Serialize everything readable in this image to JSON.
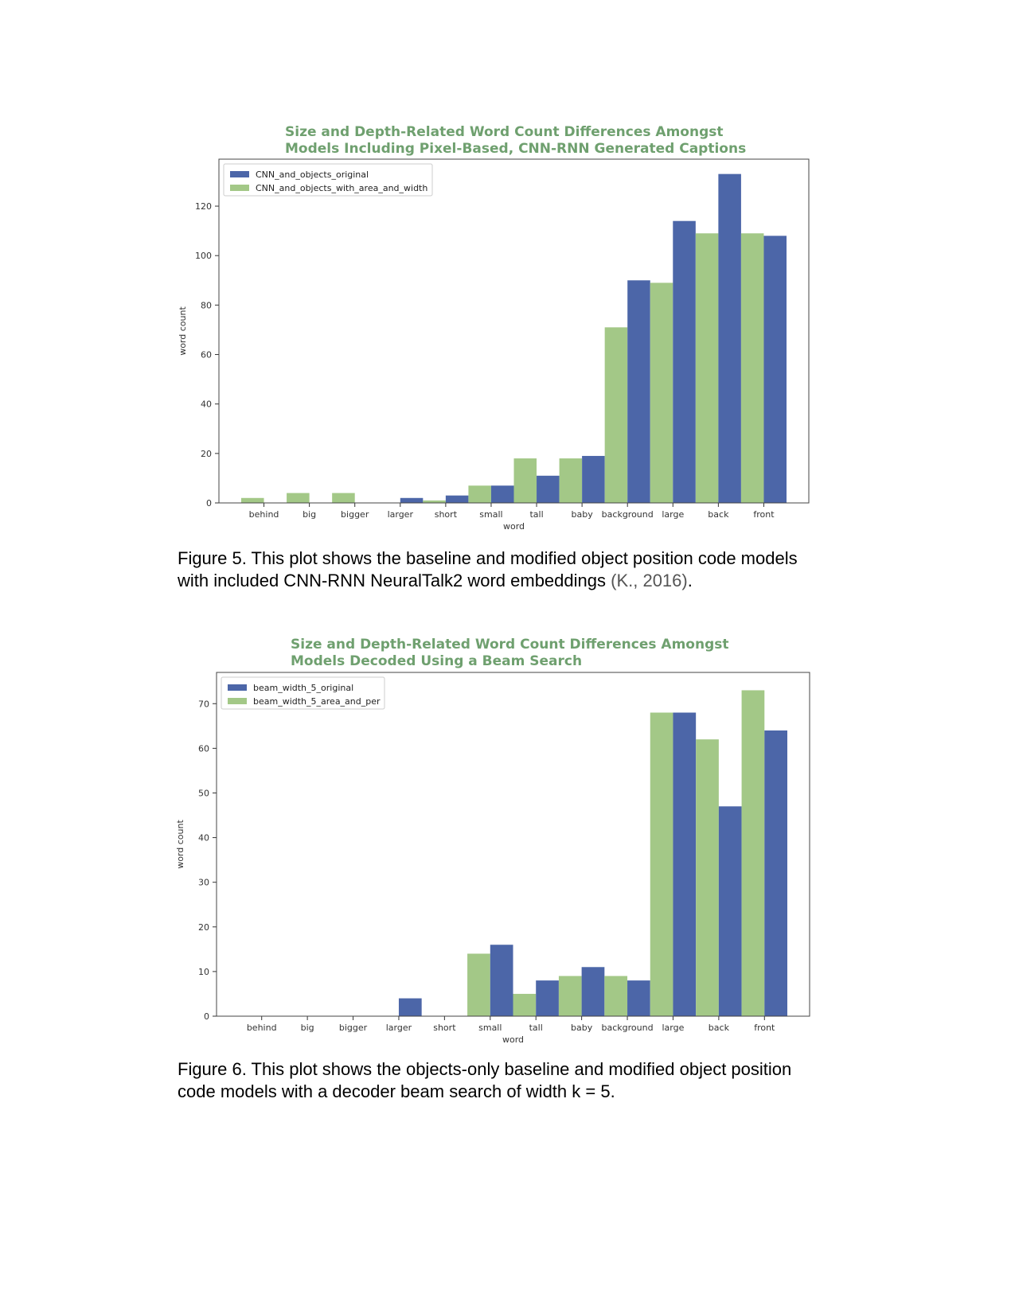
{
  "chart_data": [
    {
      "type": "bar",
      "title": [
        "Size and Depth-Related Word Count Differences Amongst",
        "Models Including Pixel-Based, CNN-RNN Generated Captions"
      ],
      "xlabel": "word",
      "ylabel": "word count",
      "categories": [
        "behind",
        "big",
        "bigger",
        "larger",
        "short",
        "small",
        "tall",
        "baby",
        "background",
        "large",
        "back",
        "front"
      ],
      "series": [
        {
          "name": "CNN_and_objects_original",
          "color": "#4c66a8",
          "values": [
            0,
            0,
            0,
            2,
            3,
            7,
            11,
            19,
            90,
            114,
            133,
            108
          ]
        },
        {
          "name": "CNN_and_objects_with_area_and_width",
          "color": "#a3c887",
          "values": [
            2,
            4,
            4,
            0,
            1,
            7,
            18,
            18,
            71,
            89,
            109,
            109
          ]
        }
      ],
      "draw_order": [
        1,
        0
      ],
      "ylim": [
        0,
        139
      ],
      "yticks": [
        0,
        20,
        40,
        60,
        80,
        100,
        120
      ],
      "legend": "top-left",
      "grid": false
    },
    {
      "type": "bar",
      "title": [
        "Size and Depth-Related Word Count Differences Amongst",
        "Models Decoded Using a Beam Search"
      ],
      "xlabel": "word",
      "ylabel": "word count",
      "categories": [
        "behind",
        "big",
        "bigger",
        "larger",
        "short",
        "small",
        "tall",
        "baby",
        "background",
        "large",
        "back",
        "front"
      ],
      "series": [
        {
          "name": "beam_width_5_original",
          "color": "#4c66a8",
          "values": [
            0,
            0,
            0,
            4,
            0,
            16,
            8,
            11,
            8,
            68,
            47,
            64
          ]
        },
        {
          "name": "beam_width_5_area_and_per",
          "color": "#a3c887",
          "values": [
            0,
            0,
            0,
            0,
            0,
            14,
            5,
            9,
            9,
            68,
            62,
            73
          ]
        }
      ],
      "draw_order": [
        1,
        0
      ],
      "ylim": [
        0,
        77
      ],
      "yticks": [
        0,
        10,
        20,
        30,
        40,
        50,
        60,
        70
      ],
      "legend": "top-left",
      "grid": false
    }
  ],
  "captions": {
    "fig5_text": "Figure 5. This plot shows the baseline and modified object position code models with included CNN-RNN NeuralTalk2 word embeddings ",
    "fig5_citation": "(K., 2016)",
    "fig5_end": ".",
    "fig6_text": "Figure 6. This plot shows the objects-only baseline and modified object position code models with a decoder beam search of width k = 5."
  }
}
